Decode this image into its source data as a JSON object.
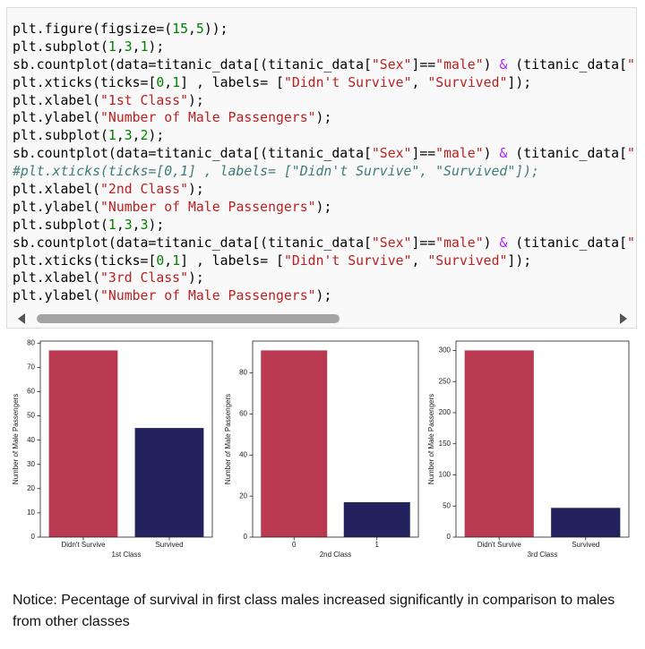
{
  "code": {
    "lines": [
      "plt.figure(figsize=(15,5));",
      "plt.subplot(1,3,1);",
      "sb.countplot(data=titanic_data[(titanic_data[\"Sex\"]==\"male\") & (titanic_data[\"",
      "plt.xticks(ticks=[0,1] , labels= [\"Didn't Survive\", \"Survived\"]);",
      "plt.xlabel(\"1st Class\");",
      "plt.ylabel(\"Number of Male Passengers\");",
      "plt.subplot(1,3,2);",
      "sb.countplot(data=titanic_data[(titanic_data[\"Sex\"]==\"male\") & (titanic_data[\"",
      "#plt.xticks(ticks=[0,1] , labels= [\"Didn't Survive\", \"Survived\"]);",
      "plt.xlabel(\"2nd Class\");",
      "plt.ylabel(\"Number of Male Passengers\");",
      "plt.subplot(1,3,3);",
      "sb.countplot(data=titanic_data[(titanic_data[\"Sex\"]==\"male\") & (titanic_data[\"",
      "plt.xticks(ticks=[0,1] , labels= [\"Didn't Survive\", \"Survived\"]);",
      "plt.xlabel(\"3rd Class\");",
      "plt.ylabel(\"Number of Male Passengers\");"
    ]
  },
  "chart_data": [
    {
      "type": "bar",
      "categories": [
        "Didn't Survive",
        "Survived"
      ],
      "values": [
        77,
        45
      ],
      "colors": [
        "#b93a50",
        "#22225e"
      ],
      "xlabel": "1st Class",
      "ylabel": "Number of Male Passengers",
      "ylim": [
        0,
        80.85
      ],
      "yticks": [
        0,
        10,
        20,
        30,
        40,
        50,
        60,
        70,
        80
      ]
    },
    {
      "type": "bar",
      "categories": [
        "0",
        "1"
      ],
      "values": [
        91,
        17
      ],
      "colors": [
        "#b93a50",
        "#22225e"
      ],
      "xlabel": "2nd Class",
      "ylabel": "Number of Male Passengers",
      "ylim": [
        0,
        95.55
      ],
      "yticks": [
        0,
        20,
        40,
        60,
        80
      ]
    },
    {
      "type": "bar",
      "categories": [
        "Didn't Survive",
        "Survived"
      ],
      "values": [
        300,
        47
      ],
      "colors": [
        "#b93a50",
        "#22225e"
      ],
      "xlabel": "3rd Class",
      "ylabel": "Number of Male Passengers",
      "ylim": [
        0,
        315
      ],
      "yticks": [
        0,
        50,
        100,
        150,
        200,
        250,
        300
      ]
    }
  ],
  "notice": "Notice: Pecentage of survival in first class males increased significantly in comparison to males from other classes"
}
